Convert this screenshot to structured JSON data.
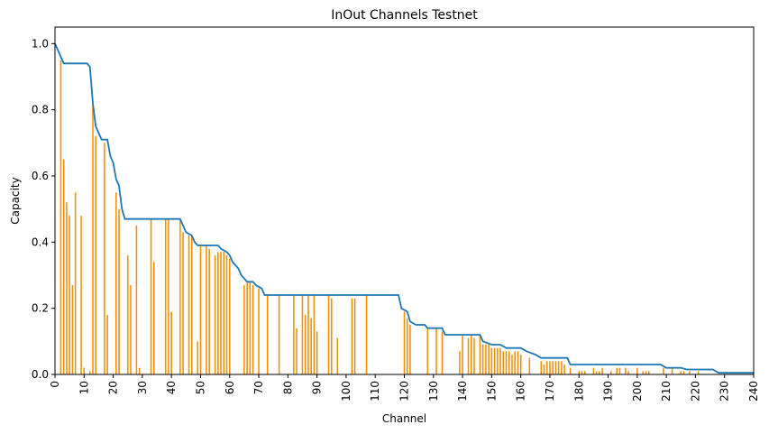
{
  "chart_data": {
    "type": "bar",
    "title": "InOut Channels Testnet",
    "xlabel": "Channel",
    "ylabel": "Capacity",
    "xlim": [
      0,
      240
    ],
    "ylim": [
      0,
      1.05
    ],
    "x_ticks": [
      0,
      10,
      20,
      30,
      40,
      50,
      60,
      70,
      80,
      90,
      100,
      110,
      120,
      130,
      140,
      150,
      160,
      170,
      180,
      190,
      200,
      210,
      220,
      230,
      240
    ],
    "y_ticks": [
      0.0,
      0.2,
      0.4,
      0.6,
      0.8,
      1.0
    ],
    "x_tick_labels": [
      "0",
      "10",
      "20",
      "30",
      "40",
      "50",
      "60",
      "70",
      "80",
      "90",
      "100",
      "110",
      "120",
      "130",
      "140",
      "150",
      "160",
      "170",
      "180",
      "190",
      "200",
      "210",
      "220",
      "230",
      "240"
    ],
    "y_tick_labels": [
      "0.0",
      "0.2",
      "0.4",
      "0.6",
      "0.8",
      "1.0"
    ],
    "grid": false,
    "colors": {
      "bars": "#ff8c00",
      "line": "#1f77b4"
    },
    "bars": [
      {
        "x": 2,
        "y": 0.95
      },
      {
        "x": 3,
        "y": 0.65
      },
      {
        "x": 4,
        "y": 0.52
      },
      {
        "x": 5,
        "y": 0.48
      },
      {
        "x": 6,
        "y": 0.27
      },
      {
        "x": 7,
        "y": 0.55
      },
      {
        "x": 9,
        "y": 0.48
      },
      {
        "x": 10,
        "y": 0.02
      },
      {
        "x": 12,
        "y": 0.01
      },
      {
        "x": 13,
        "y": 0.82
      },
      {
        "x": 14,
        "y": 0.72
      },
      {
        "x": 17,
        "y": 0.7
      },
      {
        "x": 18,
        "y": 0.18
      },
      {
        "x": 21,
        "y": 0.55
      },
      {
        "x": 22,
        "y": 0.5
      },
      {
        "x": 25,
        "y": 0.36
      },
      {
        "x": 26,
        "y": 0.27
      },
      {
        "x": 28,
        "y": 0.45
      },
      {
        "x": 29,
        "y": 0.02
      },
      {
        "x": 33,
        "y": 0.47
      },
      {
        "x": 34,
        "y": 0.34
      },
      {
        "x": 38,
        "y": 0.47
      },
      {
        "x": 39,
        "y": 0.47
      },
      {
        "x": 40,
        "y": 0.19
      },
      {
        "x": 43,
        "y": 0.47
      },
      {
        "x": 44,
        "y": 0.43
      },
      {
        "x": 46,
        "y": 0.42
      },
      {
        "x": 47,
        "y": 0.42
      },
      {
        "x": 49,
        "y": 0.1
      },
      {
        "x": 50,
        "y": 0.39
      },
      {
        "x": 52,
        "y": 0.39
      },
      {
        "x": 53,
        "y": 0.38
      },
      {
        "x": 55,
        "y": 0.36
      },
      {
        "x": 56,
        "y": 0.37
      },
      {
        "x": 57,
        "y": 0.37
      },
      {
        "x": 58,
        "y": 0.37
      },
      {
        "x": 59,
        "y": 0.36
      },
      {
        "x": 60,
        "y": 0.35
      },
      {
        "x": 65,
        "y": 0.27
      },
      {
        "x": 66,
        "y": 0.28
      },
      {
        "x": 67,
        "y": 0.28
      },
      {
        "x": 68,
        "y": 0.27
      },
      {
        "x": 70,
        "y": 0.26
      },
      {
        "x": 73,
        "y": 0.24
      },
      {
        "x": 77,
        "y": 0.24
      },
      {
        "x": 82,
        "y": 0.24
      },
      {
        "x": 83,
        "y": 0.14
      },
      {
        "x": 85,
        "y": 0.24
      },
      {
        "x": 86,
        "y": 0.18
      },
      {
        "x": 87,
        "y": 0.24
      },
      {
        "x": 88,
        "y": 0.17
      },
      {
        "x": 89,
        "y": 0.24
      },
      {
        "x": 90,
        "y": 0.13
      },
      {
        "x": 94,
        "y": 0.24
      },
      {
        "x": 95,
        "y": 0.23
      },
      {
        "x": 97,
        "y": 0.11
      },
      {
        "x": 102,
        "y": 0.23
      },
      {
        "x": 103,
        "y": 0.23
      },
      {
        "x": 107,
        "y": 0.24
      },
      {
        "x": 120,
        "y": 0.19
      },
      {
        "x": 121,
        "y": 0.17
      },
      {
        "x": 122,
        "y": 0.15
      },
      {
        "x": 128,
        "y": 0.14
      },
      {
        "x": 131,
        "y": 0.14
      },
      {
        "x": 133,
        "y": 0.13
      },
      {
        "x": 139,
        "y": 0.07
      },
      {
        "x": 140,
        "y": 0.12
      },
      {
        "x": 142,
        "y": 0.11
      },
      {
        "x": 143,
        "y": 0.12
      },
      {
        "x": 144,
        "y": 0.11
      },
      {
        "x": 146,
        "y": 0.12
      },
      {
        "x": 147,
        "y": 0.09
      },
      {
        "x": 148,
        "y": 0.09
      },
      {
        "x": 149,
        "y": 0.09
      },
      {
        "x": 150,
        "y": 0.08
      },
      {
        "x": 151,
        "y": 0.08
      },
      {
        "x": 152,
        "y": 0.08
      },
      {
        "x": 153,
        "y": 0.08
      },
      {
        "x": 154,
        "y": 0.07
      },
      {
        "x": 155,
        "y": 0.07
      },
      {
        "x": 156,
        "y": 0.07
      },
      {
        "x": 157,
        "y": 0.06
      },
      {
        "x": 158,
        "y": 0.07
      },
      {
        "x": 159,
        "y": 0.07
      },
      {
        "x": 160,
        "y": 0.06
      },
      {
        "x": 163,
        "y": 0.05
      },
      {
        "x": 167,
        "y": 0.04
      },
      {
        "x": 168,
        "y": 0.03
      },
      {
        "x": 169,
        "y": 0.04
      },
      {
        "x": 170,
        "y": 0.04
      },
      {
        "x": 171,
        "y": 0.04
      },
      {
        "x": 172,
        "y": 0.04
      },
      {
        "x": 173,
        "y": 0.04
      },
      {
        "x": 174,
        "y": 0.04
      },
      {
        "x": 175,
        "y": 0.03
      },
      {
        "x": 177,
        "y": 0.02
      },
      {
        "x": 180,
        "y": 0.01
      },
      {
        "x": 181,
        "y": 0.01
      },
      {
        "x": 182,
        "y": 0.01
      },
      {
        "x": 185,
        "y": 0.02
      },
      {
        "x": 186,
        "y": 0.01
      },
      {
        "x": 187,
        "y": 0.01
      },
      {
        "x": 188,
        "y": 0.02
      },
      {
        "x": 191,
        "y": 0.01
      },
      {
        "x": 193,
        "y": 0.02
      },
      {
        "x": 194,
        "y": 0.02
      },
      {
        "x": 196,
        "y": 0.02
      },
      {
        "x": 197,
        "y": 0.01
      },
      {
        "x": 200,
        "y": 0.02
      },
      {
        "x": 202,
        "y": 0.01
      },
      {
        "x": 203,
        "y": 0.01
      },
      {
        "x": 204,
        "y": 0.01
      },
      {
        "x": 209,
        "y": 0.02
      },
      {
        "x": 212,
        "y": 0.02
      },
      {
        "x": 215,
        "y": 0.01
      },
      {
        "x": 216,
        "y": 0.01
      },
      {
        "x": 218,
        "y": 0.01
      },
      {
        "x": 221,
        "y": 0.01
      }
    ],
    "line": [
      {
        "x": 0,
        "y": 1.0
      },
      {
        "x": 1,
        "y": 0.98
      },
      {
        "x": 2,
        "y": 0.96
      },
      {
        "x": 3,
        "y": 0.94
      },
      {
        "x": 11,
        "y": 0.94
      },
      {
        "x": 12,
        "y": 0.93
      },
      {
        "x": 13,
        "y": 0.82
      },
      {
        "x": 14,
        "y": 0.75
      },
      {
        "x": 15,
        "y": 0.73
      },
      {
        "x": 16,
        "y": 0.71
      },
      {
        "x": 18,
        "y": 0.71
      },
      {
        "x": 19,
        "y": 0.66
      },
      {
        "x": 20,
        "y": 0.64
      },
      {
        "x": 21,
        "y": 0.59
      },
      {
        "x": 22,
        "y": 0.57
      },
      {
        "x": 23,
        "y": 0.5
      },
      {
        "x": 24,
        "y": 0.47
      },
      {
        "x": 43,
        "y": 0.47
      },
      {
        "x": 44,
        "y": 0.45
      },
      {
        "x": 45,
        "y": 0.43
      },
      {
        "x": 47,
        "y": 0.42
      },
      {
        "x": 48,
        "y": 0.4
      },
      {
        "x": 49,
        "y": 0.39
      },
      {
        "x": 56,
        "y": 0.39
      },
      {
        "x": 57,
        "y": 0.38
      },
      {
        "x": 59,
        "y": 0.37
      },
      {
        "x": 60,
        "y": 0.36
      },
      {
        "x": 61,
        "y": 0.34
      },
      {
        "x": 63,
        "y": 0.32
      },
      {
        "x": 64,
        "y": 0.3
      },
      {
        "x": 66,
        "y": 0.28
      },
      {
        "x": 68,
        "y": 0.28
      },
      {
        "x": 69,
        "y": 0.27
      },
      {
        "x": 71,
        "y": 0.26
      },
      {
        "x": 72,
        "y": 0.24
      },
      {
        "x": 118,
        "y": 0.24
      },
      {
        "x": 119,
        "y": 0.2
      },
      {
        "x": 121,
        "y": 0.19
      },
      {
        "x": 122,
        "y": 0.16
      },
      {
        "x": 124,
        "y": 0.15
      },
      {
        "x": 127,
        "y": 0.15
      },
      {
        "x": 128,
        "y": 0.14
      },
      {
        "x": 133,
        "y": 0.14
      },
      {
        "x": 134,
        "y": 0.12
      },
      {
        "x": 146,
        "y": 0.12
      },
      {
        "x": 147,
        "y": 0.1
      },
      {
        "x": 150,
        "y": 0.09
      },
      {
        "x": 153,
        "y": 0.09
      },
      {
        "x": 155,
        "y": 0.08
      },
      {
        "x": 160,
        "y": 0.08
      },
      {
        "x": 162,
        "y": 0.07
      },
      {
        "x": 165,
        "y": 0.06
      },
      {
        "x": 167,
        "y": 0.05
      },
      {
        "x": 176,
        "y": 0.05
      },
      {
        "x": 177,
        "y": 0.03
      },
      {
        "x": 208,
        "y": 0.03
      },
      {
        "x": 210,
        "y": 0.02
      },
      {
        "x": 215,
        "y": 0.02
      },
      {
        "x": 217,
        "y": 0.015
      },
      {
        "x": 226,
        "y": 0.015
      },
      {
        "x": 228,
        "y": 0.005
      },
      {
        "x": 240,
        "y": 0.005
      }
    ]
  }
}
